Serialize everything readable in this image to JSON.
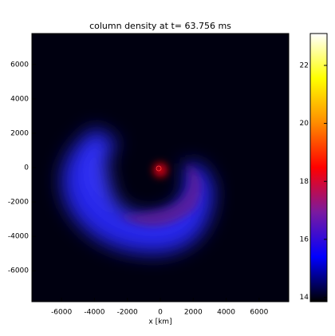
{
  "chart_data": {
    "type": "image",
    "title": "column density at t= 63.756 ms",
    "x_label": "x [km]",
    "xlim": [
      -7800,
      7800
    ],
    "ylim": [
      -7800,
      7800
    ],
    "xticks": [
      -6000,
      -4000,
      -2000,
      0,
      2000,
      4000,
      6000
    ],
    "yticks": [
      -6000,
      -4000,
      -2000,
      0,
      2000,
      4000,
      6000
    ],
    "colorbar": {
      "lim": [
        13.85,
        23.1
      ],
      "ticks": [
        14,
        16,
        18,
        20,
        22
      ],
      "colormap": [
        "#000000",
        "#0000ff",
        "#7a1aa0",
        "#ff0000",
        "#ff8c00",
        "#ffff00",
        "#ffffff"
      ]
    }
  }
}
